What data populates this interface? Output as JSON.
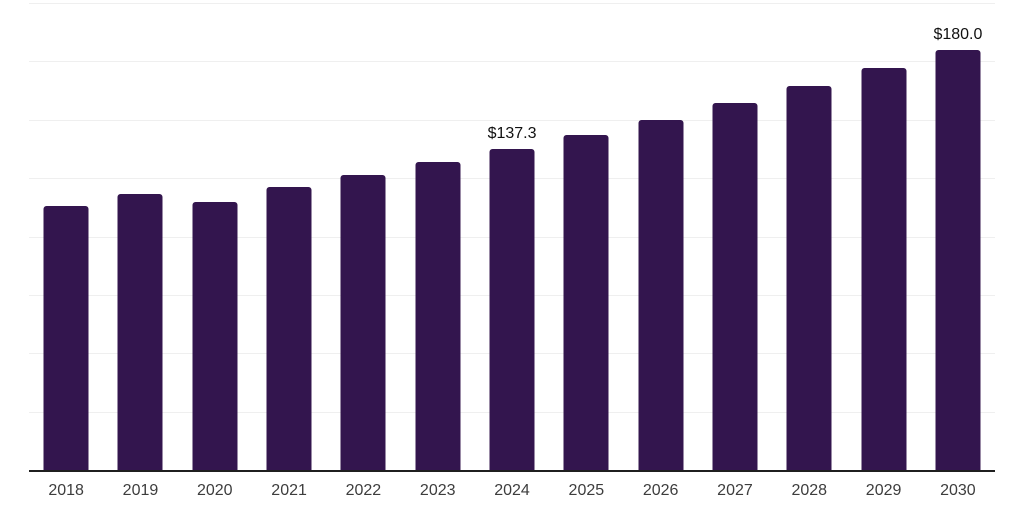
{
  "chart_data": {
    "type": "bar",
    "title": "",
    "xlabel": "",
    "ylabel": "",
    "categories": [
      "2018",
      "2019",
      "2020",
      "2021",
      "2022",
      "2023",
      "2024",
      "2025",
      "2026",
      "2027",
      "2028",
      "2029",
      "2030"
    ],
    "values": [
      112.9,
      118.3,
      114.7,
      121.2,
      126.2,
      131.7,
      137.3,
      143.3,
      150.0,
      157.2,
      164.6,
      172.1,
      180.0
    ],
    "data_labels": [
      "",
      "",
      "",
      "",
      "",
      "",
      "$137.3",
      "",
      "",
      "",
      "",
      "",
      "$180.0"
    ],
    "ylim": [
      0,
      200
    ],
    "gridline_interval": 25,
    "grid": "on",
    "legend": "none",
    "y_tick_labels": "none",
    "colors": {
      "bar": "#33154E",
      "gridline": "#efefef",
      "axis_line": "#1f1f1f",
      "tick_label": "#3d3d3d",
      "data_label": "#111111",
      "background": "#ffffff"
    }
  }
}
